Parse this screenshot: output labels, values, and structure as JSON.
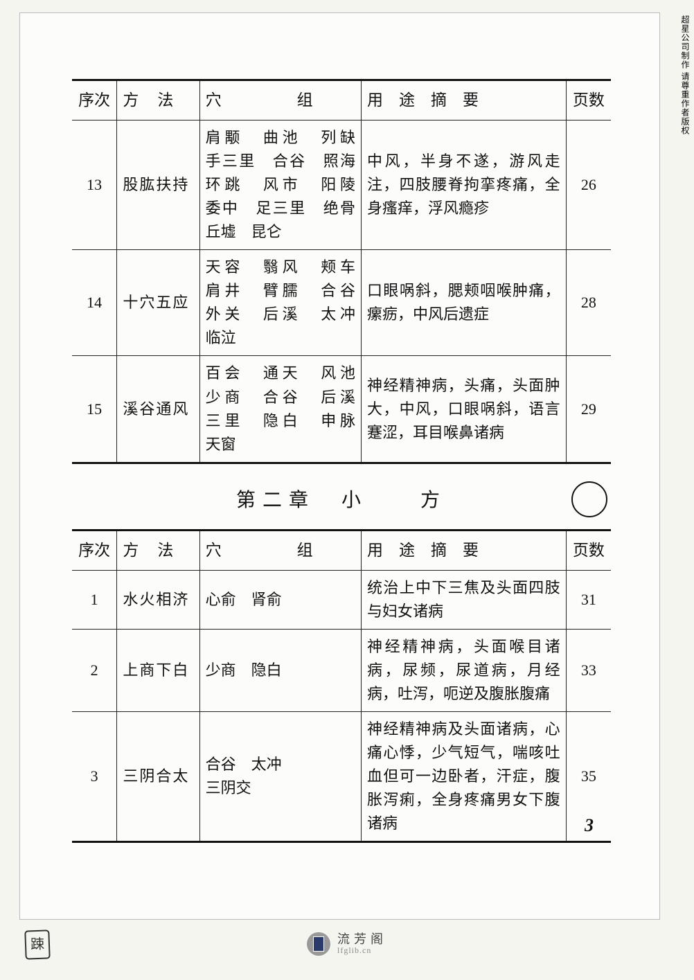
{
  "layout": {
    "page_bg": "#f5f5f0",
    "paper_bg": "#fcfcfa",
    "border_color": "#222",
    "font_family": "SimSun"
  },
  "vertical_label": "超星公司制作 请尊重作者版权",
  "table1": {
    "headers": [
      "序次",
      "方　法",
      "穴　　　组",
      "用　途　摘　要",
      "页数"
    ],
    "rows": [
      {
        "seq": "13",
        "method": "股肱扶持",
        "group": "肩颙　曲池　列缺　手三里　合谷　照海　环跳　风市　阳陵　委中　足三里　绝骨　丘墟　昆仑",
        "usage": "中风，半身不遂，游风走注，四肢腰脊拘挛疼痛，全身瘙痒，浮风瘾疹",
        "page": "26"
      },
      {
        "seq": "14",
        "method": "十穴五应",
        "group": "天容　翳风　颊车　肩井　臂臑　合谷　外关　后溪　太冲　临泣",
        "usage": "口眼㖞斜，腮颊咽喉肿痛，瘰疬，中风后遗症",
        "page": "28"
      },
      {
        "seq": "15",
        "method": "溪谷通风",
        "group": "百会　通天　风池　少商　合谷　后溪　三里　隐白　申脉　天窗",
        "usage": "神经精神病，头痛，头面肿大，中风，口眼㖞斜，语言蹇涩，耳目喉鼻诸病",
        "page": "29"
      }
    ]
  },
  "chapter": "第二章　小　　方",
  "table2": {
    "headers": [
      "序次",
      "方　法",
      "穴　　　组",
      "用　途　摘　要",
      "页数"
    ],
    "rows": [
      {
        "seq": "1",
        "method": "水火相济",
        "group": "心俞　肾俞",
        "usage": "统治上中下三焦及头面四肢与妇女诸病",
        "page": "31"
      },
      {
        "seq": "2",
        "method": "上商下白",
        "group": "少商　隐白",
        "usage": "神经精神病，头面喉目诸病，尿频，尿道病，月经病，吐泻，呃逆及腹胀腹痛",
        "page": "33"
      },
      {
        "seq": "3",
        "method": "三阴合太",
        "group": "合谷　太冲\n三阴交",
        "usage": "神经精神病及头面诸病，心痛心悸，少气短气，喘咳吐血但可一边卧者，汗症，腹胀泻痢，全身疼痛男女下腹诸病",
        "page": "35"
      }
    ]
  },
  "page_number": "3",
  "footer": {
    "cn": "流芳阁",
    "en": "lfglib.cn"
  },
  "stamp": "踈"
}
